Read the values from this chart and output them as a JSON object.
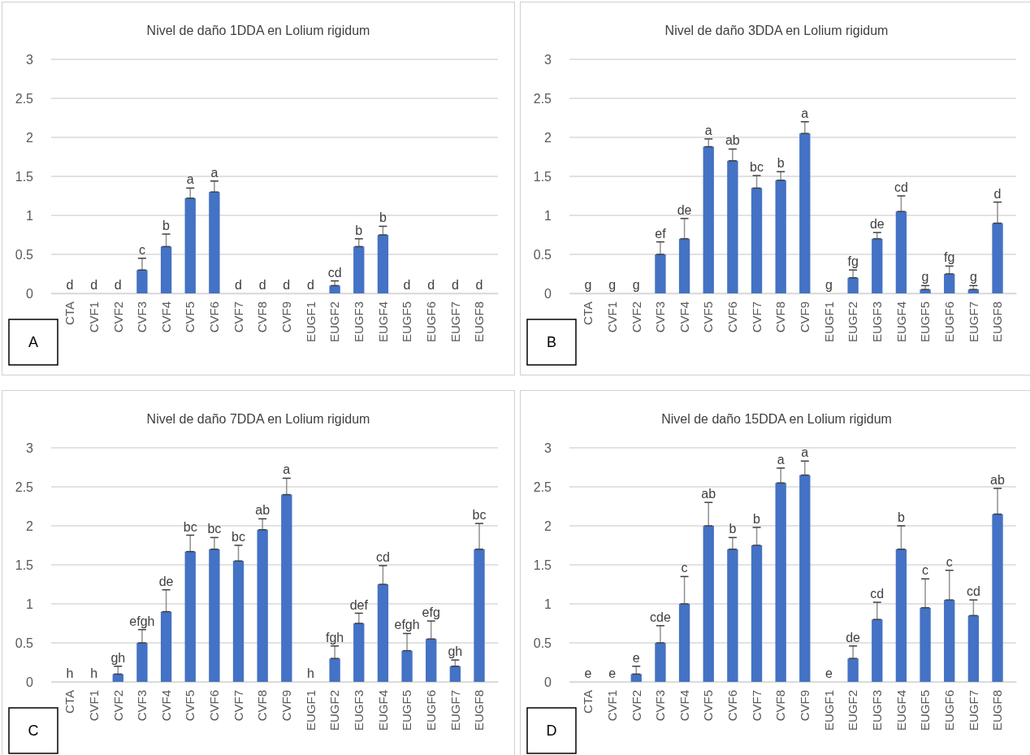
{
  "chart_data": [
    {
      "type": "bar",
      "title": "Nivel de daño 1DDA en Lolium rigidum",
      "categories": [
        "CTA",
        "CVF1",
        "CVF2",
        "CVF3",
        "CVF4",
        "CVF5",
        "CVF6",
        "CVF7",
        "CVF8",
        "CVF9",
        "EUGF1",
        "EUGF2",
        "EUGF3",
        "EUGF4",
        "EUGF5",
        "EUGF6",
        "EUGF7",
        "EUGF8"
      ],
      "values": [
        0,
        0,
        0,
        0.3,
        0.6,
        1.22,
        1.3,
        0,
        0,
        0,
        0,
        0.1,
        0.6,
        0.75,
        0,
        0,
        0,
        0
      ],
      "errors": [
        null,
        null,
        null,
        [
          0.3,
          0.45
        ],
        [
          0.6,
          0.76
        ],
        [
          1.22,
          1.35
        ],
        [
          1.3,
          1.44
        ],
        null,
        null,
        null,
        null,
        [
          0.1,
          0.16
        ],
        [
          0.6,
          0.7
        ],
        [
          0.75,
          0.86
        ],
        null,
        null,
        null,
        null
      ],
      "value_labels": [
        "d",
        "d",
        "d",
        "c",
        "b",
        "a",
        "a",
        "d",
        "d",
        "d",
        "d",
        "cd",
        "b",
        "b",
        "d",
        "d",
        "d",
        "d"
      ],
      "color": "#4472c4",
      "ylim": [
        0,
        3
      ],
      "yticks": [
        0,
        0.5,
        1,
        1.5,
        2,
        2.5,
        3
      ],
      "grid": "y",
      "annotations": [
        "A"
      ]
    },
    {
      "type": "bar",
      "title": "Nivel de daño 3DDA en Lolium rigidum",
      "categories": [
        "CTA",
        "CVF1",
        "CVF2",
        "CVF3",
        "CVF4",
        "CVF5",
        "CVF6",
        "CVF7",
        "CVF8",
        "CVF9",
        "EUGF1",
        "EUGF2",
        "EUGF3",
        "EUGF4",
        "EUGF5",
        "EUGF6",
        "EUGF7",
        "EUGF8"
      ],
      "values": [
        0,
        0,
        0,
        0.5,
        0.7,
        1.88,
        1.7,
        1.35,
        1.45,
        2.05,
        0,
        0.2,
        0.7,
        1.05,
        0.05,
        0.25,
        0.05,
        0.9
      ],
      "errors": [
        null,
        null,
        null,
        [
          0.5,
          0.66
        ],
        [
          0.7,
          0.96
        ],
        [
          1.88,
          1.98
        ],
        [
          1.7,
          1.85
        ],
        [
          1.35,
          1.51
        ],
        [
          1.45,
          1.56
        ],
        [
          2.05,
          2.2
        ],
        null,
        [
          0.2,
          0.3
        ],
        [
          0.7,
          0.78
        ],
        [
          1.05,
          1.25
        ],
        [
          0.05,
          0.1
        ],
        [
          0.25,
          0.35
        ],
        [
          0.05,
          0.1
        ],
        [
          0.9,
          1.17
        ]
      ],
      "value_labels": [
        "g",
        "g",
        "g",
        "ef",
        "de",
        "a",
        "ab",
        "bc",
        "b",
        "a",
        "g",
        "fg",
        "de",
        "cd",
        "g",
        "fg",
        "g",
        "d"
      ],
      "color": "#4472c4",
      "ylim": [
        0,
        3
      ],
      "yticks": [
        0,
        0.5,
        1,
        1.5,
        2,
        2.5,
        3
      ],
      "grid": "y",
      "annotations": [
        "B"
      ]
    },
    {
      "type": "bar",
      "title": "Nivel de daño 7DDA en Lolium rigidum",
      "categories": [
        "CTA",
        "CVF1",
        "CVF2",
        "CVF3",
        "CVF4",
        "CVF5",
        "CVF6",
        "CVF7",
        "CVF8",
        "CVF9",
        "EUGF1",
        "EUGF2",
        "EUGF3",
        "EUGF4",
        "EUGF5",
        "EUGF6",
        "EUGF7",
        "EUGF8"
      ],
      "values": [
        0,
        0,
        0.1,
        0.5,
        0.9,
        1.67,
        1.7,
        1.55,
        1.95,
        2.4,
        0,
        0.3,
        0.75,
        1.25,
        0.4,
        0.55,
        0.2,
        1.7
      ],
      "errors": [
        null,
        null,
        [
          0.1,
          0.2
        ],
        [
          0.5,
          0.67
        ],
        [
          0.9,
          1.18
        ],
        [
          1.67,
          1.88
        ],
        [
          1.7,
          1.85
        ],
        [
          1.55,
          1.75
        ],
        [
          1.95,
          2.09
        ],
        [
          2.4,
          2.61
        ],
        null,
        [
          0.3,
          0.46
        ],
        [
          0.75,
          0.88
        ],
        [
          1.25,
          1.49
        ],
        [
          0.4,
          0.62
        ],
        [
          0.55,
          0.78
        ],
        [
          0.2,
          0.28
        ],
        [
          1.7,
          2.03
        ]
      ],
      "value_labels": [
        "h",
        "h",
        "gh",
        "efgh",
        "de",
        "bc",
        "bc",
        "bc",
        "ab",
        "a",
        "h",
        "fgh",
        "def",
        "cd",
        "efgh",
        "efg",
        "gh",
        "bc"
      ],
      "color": "#4472c4",
      "ylim": [
        0,
        3
      ],
      "yticks": [
        0,
        0.5,
        1,
        1.5,
        2,
        2.5,
        3
      ],
      "grid": "y",
      "annotations": [
        "C"
      ]
    },
    {
      "type": "bar",
      "title": "Nivel de daño 15DDA en Lolium rigidum",
      "categories": [
        "CTA",
        "CVF1",
        "CVF2",
        "CVF3",
        "CVF4",
        "CVF5",
        "CVF6",
        "CVF7",
        "CVF8",
        "CVF9",
        "EUGF1",
        "EUGF2",
        "EUGF3",
        "EUGF4",
        "EUGF5",
        "EUGF6",
        "EUGF7",
        "EUGF8"
      ],
      "values": [
        0,
        0,
        0.1,
        0.5,
        1.0,
        2.0,
        1.7,
        1.75,
        2.55,
        2.65,
        0,
        0.3,
        0.8,
        1.7,
        0.95,
        1.05,
        0.85,
        2.15
      ],
      "errors": [
        null,
        null,
        [
          0.1,
          0.2
        ],
        [
          0.5,
          0.72
        ],
        [
          1.0,
          1.35
        ],
        [
          2.0,
          2.3
        ],
        [
          1.7,
          1.85
        ],
        [
          1.75,
          1.98
        ],
        [
          2.55,
          2.74
        ],
        [
          2.65,
          2.83
        ],
        null,
        [
          0.3,
          0.46
        ],
        [
          0.8,
          1.02
        ],
        [
          1.7,
          2.0
        ],
        [
          0.95,
          1.32
        ],
        [
          1.05,
          1.43
        ],
        [
          0.85,
          1.05
        ],
        [
          2.15,
          2.48
        ]
      ],
      "value_labels": [
        "e",
        "e",
        "e",
        "cde",
        "c",
        "ab",
        "b",
        "b",
        "a",
        "a",
        "e",
        "de",
        "cd",
        "b",
        "c",
        "c",
        "cd",
        "ab"
      ],
      "color": "#4472c4",
      "ylim": [
        0,
        3
      ],
      "yticks": [
        0,
        0.5,
        1,
        1.5,
        2,
        2.5,
        3
      ],
      "grid": "y",
      "annotations": [
        "D"
      ]
    }
  ]
}
